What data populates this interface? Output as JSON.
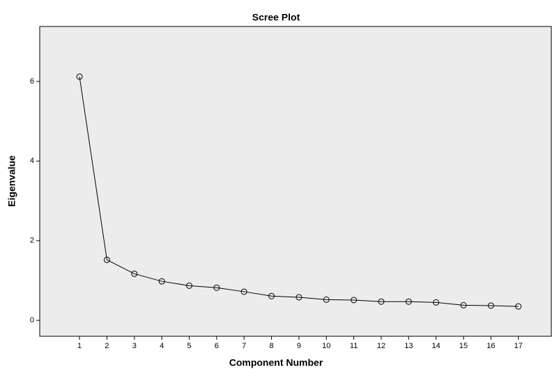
{
  "chart_data": {
    "type": "line",
    "title": "Scree Plot",
    "x_label": "Component Number",
    "y_label": "Eigenvalue",
    "x": [
      1,
      2,
      3,
      4,
      5,
      6,
      7,
      8,
      9,
      10,
      11,
      12,
      13,
      14,
      15,
      16,
      17
    ],
    "series": [
      {
        "color": "#000000",
        "values": [
          6.12,
          1.52,
          1.17,
          0.98,
          0.87,
          0.82,
          0.72,
          0.61,
          0.58,
          0.52,
          0.51,
          0.47,
          0.47,
          0.45,
          0.38,
          0.37,
          0.35
        ]
      }
    ],
    "xlim": [
      -0.45,
      18.2
    ],
    "ylim": [
      -0.4,
      7.38
    ],
    "xticks": [
      1,
      2,
      3,
      4,
      5,
      6,
      7,
      8,
      9,
      10,
      11,
      12,
      13,
      14,
      15,
      16,
      17
    ],
    "yticks": [
      0,
      2,
      4,
      6
    ]
  }
}
